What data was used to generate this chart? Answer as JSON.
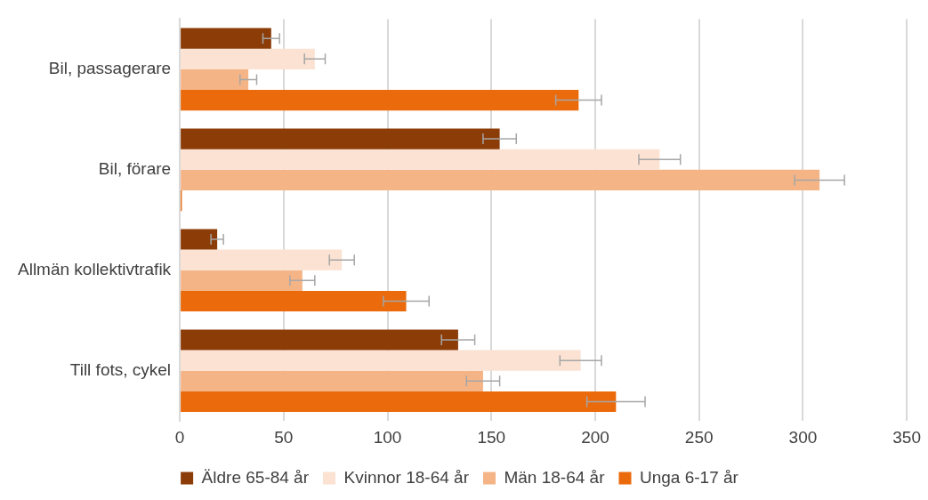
{
  "chart_data": {
    "type": "bar",
    "orientation": "horizontal",
    "categories": [
      "Bil, passagerare",
      "Bil, förare",
      "Allmän kollektivtrafik",
      "Till fots, cykel"
    ],
    "series": [
      {
        "name": "Äldre 65-84 år",
        "color": "#8b3c07",
        "values": [
          44,
          154,
          18,
          134
        ],
        "errors": [
          4,
          8,
          3,
          8
        ]
      },
      {
        "name": "Kvinnor 18-64 år",
        "color": "#fbe2d2",
        "values": [
          65,
          231,
          78,
          193
        ],
        "errors": [
          5,
          10,
          6,
          10
        ]
      },
      {
        "name": "Män 18-64 år",
        "color": "#f5b486",
        "values": [
          33,
          308,
          59,
          146
        ],
        "errors": [
          4,
          12,
          6,
          8
        ]
      },
      {
        "name": "Unga 6-17 år",
        "color": "#ea6a0c",
        "values": [
          192,
          1,
          109,
          210
        ],
        "errors": [
          11,
          null,
          11,
          14
        ]
      }
    ],
    "xlim": [
      0,
      350
    ],
    "xticks": [
      0,
      50,
      100,
      150,
      200,
      250,
      300,
      350
    ],
    "grid": "x",
    "legend": "bottom"
  }
}
